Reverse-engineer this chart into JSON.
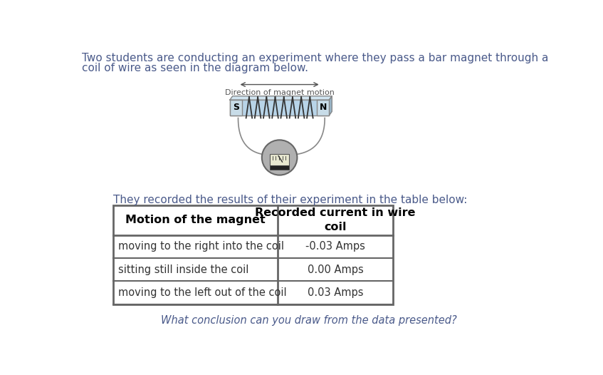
{
  "bg_color": "#ffffff",
  "intro_text_line1": "Two students are conducting an experiment where they pass a bar magnet through a",
  "intro_text_line2": "coil of wire as seen in the diagram below.",
  "intro_text_color": "#4a5a8a",
  "diagram_label": "Direction of magnet motion",
  "diagram_label_color": "#555555",
  "magnet_face_color": "#b8d4e8",
  "magnet_top_color": "#d0e4f0",
  "magnet_edge_color": "#888888",
  "coil_color": "#333333",
  "wire_color": "#888888",
  "galv_face_color": "#aaaaaa",
  "galv_edge_color": "#666666",
  "table_intro": "They recorded the results of their experiment in the table below:",
  "table_intro_color": "#4a5a8a",
  "table_header1": "Motion of the magnet",
  "table_header2": "Recorded current in wire\ncoil",
  "table_rows": [
    [
      "moving to the right into the coil",
      "-0.03 Amps"
    ],
    [
      "sitting still inside the coil",
      "0.00 Amps"
    ],
    [
      "moving to the left out of the coil",
      "0.03 Amps"
    ]
  ],
  "table_header_color": "#000000",
  "table_row_color": "#333333",
  "table_border_color": "#666666",
  "conclusion_text": "What conclusion can you draw from the data presented?",
  "conclusion_color": "#4a5a8a",
  "figsize": [
    8.47,
    5.26
  ],
  "dpi": 100
}
